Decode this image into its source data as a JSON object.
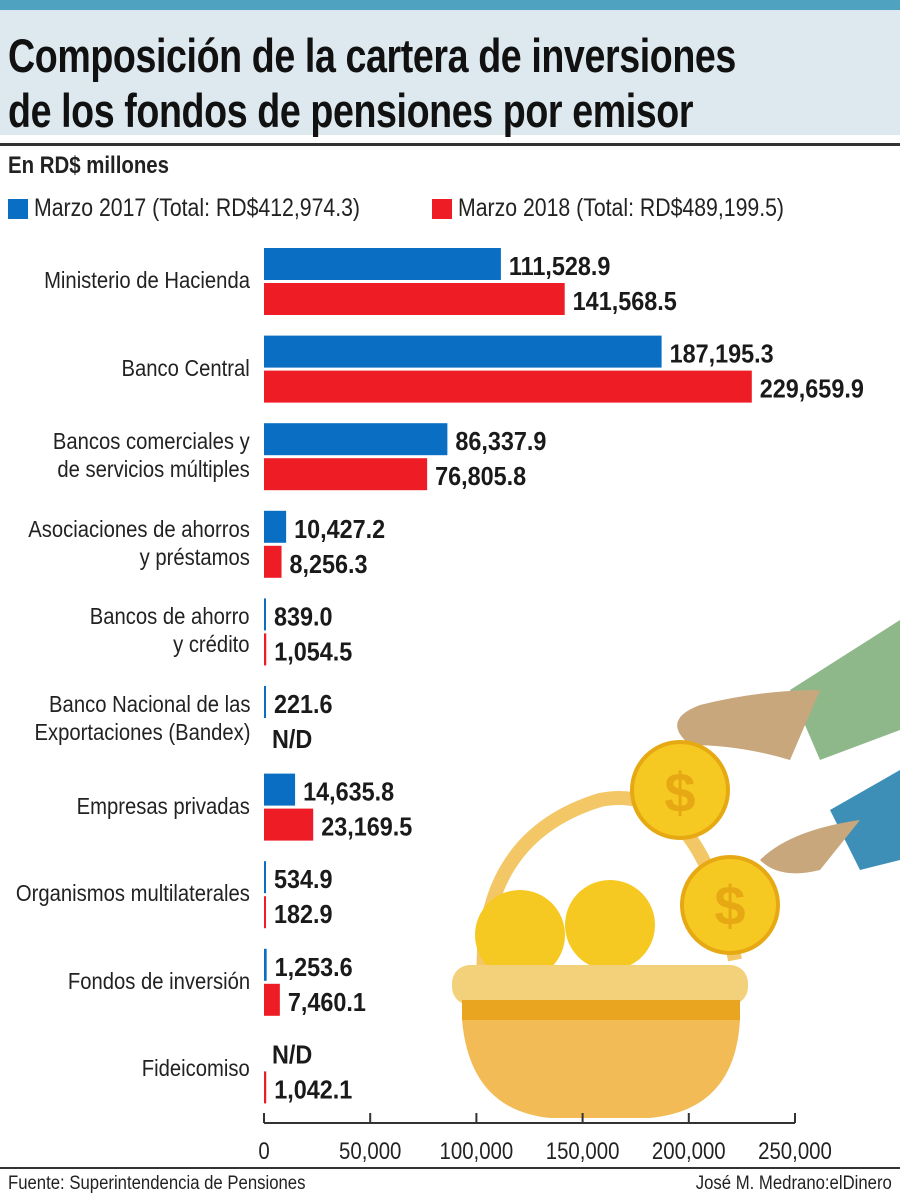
{
  "title_line1": "Composición de la cartera de inversiones",
  "title_line2": "de los fondos de pensiones por emisor",
  "chart_data": {
    "type": "bar",
    "orientation": "horizontal",
    "subtitle": "En RD$ millones",
    "categories": [
      [
        "Ministerio de Hacienda"
      ],
      [
        "Banco Central"
      ],
      [
        "Bancos comerciales y",
        "de servicios múltiples"
      ],
      [
        "Asociaciones de ahorros",
        "y préstamos"
      ],
      [
        "Bancos de ahorro",
        "y crédito"
      ],
      [
        "Banco Nacional de las",
        "Exportaciones (Bandex)"
      ],
      [
        "Empresas privadas"
      ],
      [
        "Organismos multilaterales"
      ],
      [
        "Fondos de inversión"
      ],
      [
        "Fideicomiso"
      ]
    ],
    "series": [
      {
        "name": "Marzo 2017 (Total: RD$412,974.3)",
        "color": "#0a6fc2",
        "values": [
          111528.9,
          187195.3,
          86337.9,
          10427.2,
          839.0,
          221.6,
          14635.8,
          534.9,
          1253.6,
          null
        ],
        "labels": [
          "111,528.9",
          "187,195.3",
          "86,337.9",
          "10,427.2",
          "839.0",
          "221.6",
          "14,635.8",
          "534.9",
          "1,253.6",
          "N/D"
        ]
      },
      {
        "name": "Marzo 2018 (Total: RD$489,199.5)",
        "color": "#ee1c25",
        "values": [
          141568.5,
          229659.9,
          76805.8,
          8256.3,
          1054.5,
          null,
          23169.5,
          182.9,
          7460.1,
          1042.1
        ],
        "labels": [
          "141,568.5",
          "229,659.9",
          "76,805.8",
          "8,256.3",
          "1,054.5",
          "N/D",
          "23,169.5",
          "182.9",
          "7,460.1",
          "1,042.1"
        ]
      }
    ],
    "xlim": [
      0,
      250000
    ],
    "xticks": [
      "0",
      "50,000",
      "100,000",
      "150,000",
      "200,000",
      "250,000"
    ],
    "xtick_values": [
      0,
      50000,
      100000,
      150000,
      200000,
      250000
    ],
    "legend_position": "top-left",
    "grid": false
  },
  "footer": {
    "source": "Fuente: Superintendencia de Pensiones",
    "credit": "José M. Medrano:elDinero"
  }
}
